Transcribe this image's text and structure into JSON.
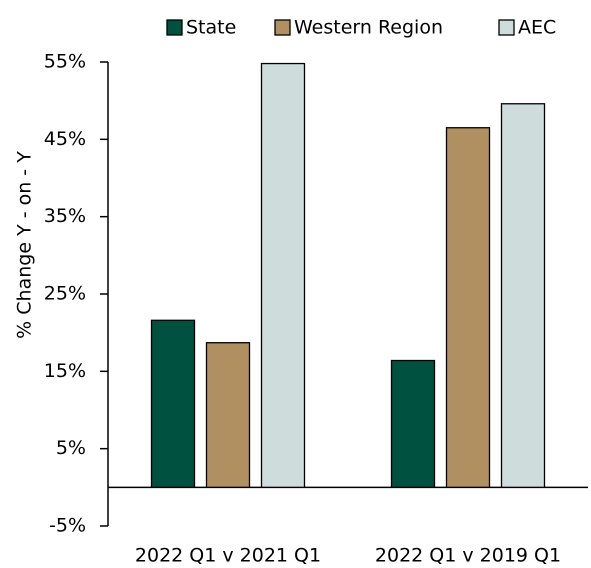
{
  "chart_data": {
    "type": "bar",
    "y_label": "% Change Y - on - Y",
    "categories": [
      "2022 Q1 v 2021 Q1",
      "2022 Q1 v 2019 Q1"
    ],
    "series": [
      {
        "name": "State",
        "color": "#00513f",
        "values": [
          21.6,
          16.4
        ]
      },
      {
        "name": "Western Region",
        "color": "#b09060",
        "values": [
          18.7,
          46.5
        ]
      },
      {
        "name": "AEC",
        "color": "#cedcdc",
        "values": [
          54.8,
          49.6
        ]
      }
    ],
    "ylim": [
      -5,
      55
    ],
    "yticks": [
      {
        "value": -5,
        "label": "-5%"
      },
      {
        "value": 5,
        "label": "5%"
      },
      {
        "value": 15,
        "label": "15%"
      },
      {
        "value": 25,
        "label": "25%"
      },
      {
        "value": 35,
        "label": "35%"
      },
      {
        "value": 45,
        "label": "45%"
      },
      {
        "value": 55,
        "label": "55%"
      }
    ],
    "legend": "top",
    "grid": false
  }
}
